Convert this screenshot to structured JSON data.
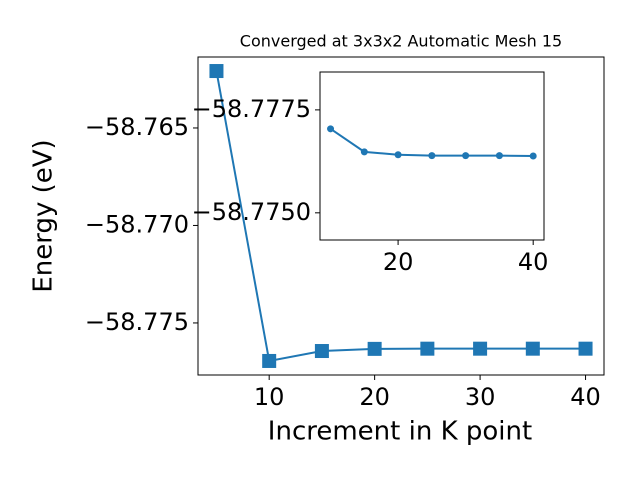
{
  "chart_data": [
    {
      "type": "line",
      "title": "Converged at 3x3x2 Automatic Mesh 15",
      "x_label": "Increment in K point",
      "y_label": "Energy (eV)",
      "x": [
        5,
        10,
        15,
        20,
        25,
        30,
        35,
        40
      ],
      "series": [
        {
          "color": "#1f77b4",
          "marker": "square",
          "values": [
            -58.76208,
            -58.77695,
            -58.77644,
            -58.77633,
            -58.77632,
            -58.77632,
            -58.77632,
            -58.77632
          ]
        }
      ],
      "xlim": [
        3.25,
        41.75
      ],
      "ylim": [
        -58.77767,
        -58.76136
      ],
      "xticks": [
        10,
        20,
        30,
        40
      ],
      "yticks": [
        {
          "value": -58.765,
          "label": "−58.765"
        },
        {
          "value": -58.77,
          "label": "−58.770"
        },
        {
          "value": -58.775,
          "label": "−58.775"
        }
      ]
    },
    {
      "type": "line",
      "x": [
        10,
        15,
        20,
        25,
        30,
        35,
        40
      ],
      "series": [
        {
          "color": "#1f77b4",
          "marker": "circle",
          "values": [
            -58.77704,
            -58.77648,
            -58.77641,
            -58.77639,
            -58.77639,
            -58.77639,
            -58.77638
          ]
        }
      ],
      "xlim": [
        8.44,
        41.6
      ],
      "ylim": [
        -58.77434,
        -58.77842
      ],
      "xticks": [
        20,
        40
      ],
      "yticks": [
        {
          "value": -58.7775,
          "label": "−58.7775"
        },
        {
          "value": -58.775,
          "label": "−58.7750"
        }
      ]
    }
  ]
}
